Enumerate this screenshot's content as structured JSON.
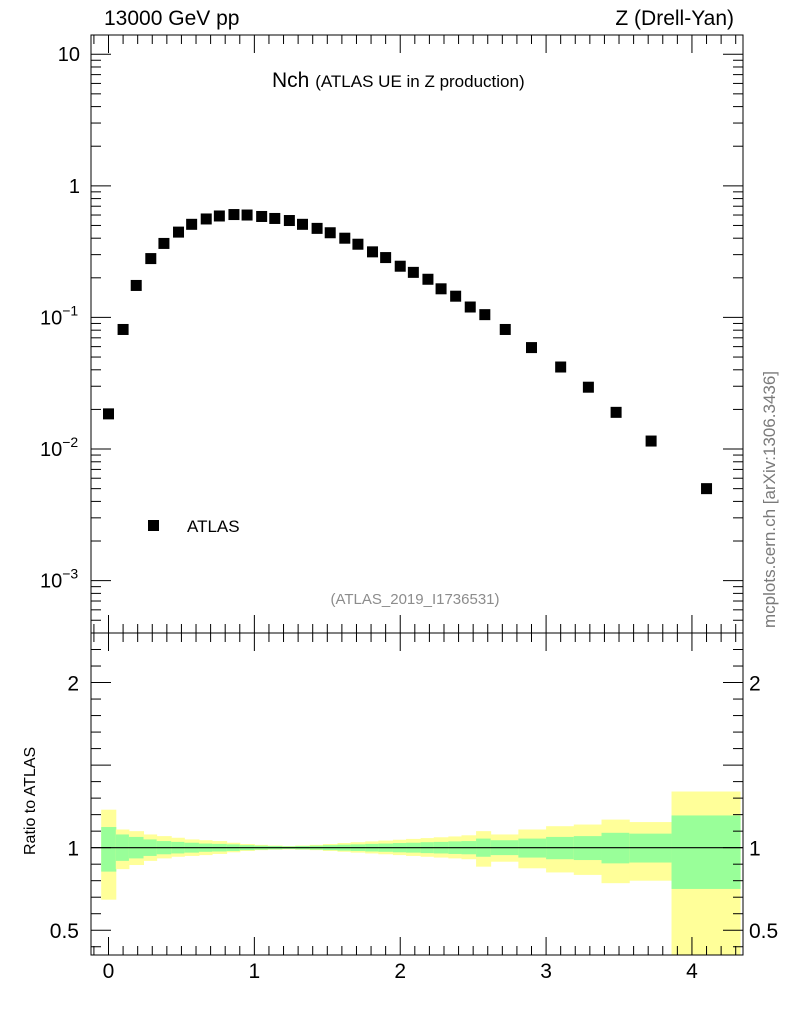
{
  "header": {
    "left": "13000 GeV pp",
    "right": "Z (Drell-Yan)",
    "side_label": "mcplots.cern.ch [arXiv:1306.3436]"
  },
  "chart_data": [
    {
      "type": "scatter",
      "title_main": "Nch",
      "title_sub": "(ATLAS UE in Z production)",
      "analysis_id": "(ATLAS_2019_I1736531)",
      "yscale": "log",
      "ylim": [
        0.0004,
        14
      ],
      "xlim": [
        -0.12,
        4.35
      ],
      "ytick_labels": [
        {
          "value": 10,
          "base": "10",
          "exp": ""
        },
        {
          "value": 1,
          "base": "1",
          "exp": ""
        },
        {
          "value": 0.1,
          "base": "10",
          "exp": "−1"
        },
        {
          "value": 0.01,
          "base": "10",
          "exp": "−2"
        },
        {
          "value": 0.001,
          "base": "10",
          "exp": "−3"
        }
      ],
      "legend": [
        {
          "label": "ATLAS",
          "marker": "square",
          "position": "lower-left"
        }
      ],
      "series": [
        {
          "name": "ATLAS",
          "color": "#000000",
          "points": [
            {
              "x": 0.0,
              "y": 0.0185
            },
            {
              "x": 0.1,
              "y": 0.081
            },
            {
              "x": 0.19,
              "y": 0.175
            },
            {
              "x": 0.29,
              "y": 0.28
            },
            {
              "x": 0.38,
              "y": 0.365
            },
            {
              "x": 0.48,
              "y": 0.445
            },
            {
              "x": 0.57,
              "y": 0.51
            },
            {
              "x": 0.67,
              "y": 0.56
            },
            {
              "x": 0.76,
              "y": 0.59
            },
            {
              "x": 0.86,
              "y": 0.605
            },
            {
              "x": 0.95,
              "y": 0.6
            },
            {
              "x": 1.05,
              "y": 0.585
            },
            {
              "x": 1.14,
              "y": 0.565
            },
            {
              "x": 1.24,
              "y": 0.545
            },
            {
              "x": 1.33,
              "y": 0.51
            },
            {
              "x": 1.43,
              "y": 0.475
            },
            {
              "x": 1.52,
              "y": 0.44
            },
            {
              "x": 1.62,
              "y": 0.4
            },
            {
              "x": 1.71,
              "y": 0.36
            },
            {
              "x": 1.81,
              "y": 0.315
            },
            {
              "x": 1.9,
              "y": 0.285
            },
            {
              "x": 2.0,
              "y": 0.245
            },
            {
              "x": 2.09,
              "y": 0.22
            },
            {
              "x": 2.19,
              "y": 0.195
            },
            {
              "x": 2.28,
              "y": 0.165
            },
            {
              "x": 2.38,
              "y": 0.145
            },
            {
              "x": 2.48,
              "y": 0.12
            },
            {
              "x": 2.58,
              "y": 0.105
            },
            {
              "x": 2.72,
              "y": 0.081
            },
            {
              "x": 2.9,
              "y": 0.059
            },
            {
              "x": 3.1,
              "y": 0.042
            },
            {
              "x": 3.29,
              "y": 0.0295
            },
            {
              "x": 3.48,
              "y": 0.019
            },
            {
              "x": 3.72,
              "y": 0.0115
            },
            {
              "x": 4.1,
              "y": 0.005
            }
          ]
        }
      ]
    },
    {
      "type": "area",
      "ylabel": "Ratio to ATLAS",
      "ylim": [
        0.35,
        2.3
      ],
      "xlim": [
        -0.12,
        4.35
      ],
      "reference_line": 1,
      "ytick_labels": [
        {
          "value": 2,
          "label": "2"
        },
        {
          "value": 1,
          "label": "1"
        },
        {
          "value": 0.5,
          "label": "0.5"
        }
      ],
      "xtick_labels": [
        {
          "value": 0,
          "label": "0"
        },
        {
          "value": 1,
          "label": "1"
        },
        {
          "value": 2,
          "label": "2"
        },
        {
          "value": 3,
          "label": "3"
        },
        {
          "value": 4,
          "label": "4"
        }
      ],
      "band_colors": {
        "stat": "#99ff99",
        "total": "#ffff99"
      },
      "bins": [
        {
          "x0": -0.05,
          "x1": 0.05,
          "stat": [
            0.855,
            1.125
          ],
          "total": [
            0.685,
            1.23
          ]
        },
        {
          "x0": 0.05,
          "x1": 0.14,
          "stat": [
            0.92,
            1.08
          ],
          "total": [
            0.87,
            1.11
          ]
        },
        {
          "x0": 0.14,
          "x1": 0.24,
          "stat": [
            0.935,
            1.065
          ],
          "total": [
            0.895,
            1.1
          ]
        },
        {
          "x0": 0.24,
          "x1": 0.33,
          "stat": [
            0.95,
            1.05
          ],
          "total": [
            0.92,
            1.08
          ]
        },
        {
          "x0": 0.33,
          "x1": 0.43,
          "stat": [
            0.96,
            1.04
          ],
          "total": [
            0.935,
            1.07
          ]
        },
        {
          "x0": 0.43,
          "x1": 0.52,
          "stat": [
            0.965,
            1.035
          ],
          "total": [
            0.945,
            1.06
          ]
        },
        {
          "x0": 0.52,
          "x1": 0.62,
          "stat": [
            0.97,
            1.03
          ],
          "total": [
            0.95,
            1.05
          ]
        },
        {
          "x0": 0.62,
          "x1": 0.71,
          "stat": [
            0.975,
            1.025
          ],
          "total": [
            0.955,
            1.045
          ]
        },
        {
          "x0": 0.71,
          "x1": 0.81,
          "stat": [
            0.977,
            1.023
          ],
          "total": [
            0.962,
            1.04
          ]
        },
        {
          "x0": 0.81,
          "x1": 0.9,
          "stat": [
            0.98,
            1.02
          ],
          "total": [
            0.972,
            1.03
          ]
        },
        {
          "x0": 0.9,
          "x1": 1.0,
          "stat": [
            0.985,
            1.015
          ],
          "total": [
            0.98,
            1.022
          ]
        },
        {
          "x0": 1.0,
          "x1": 1.09,
          "stat": [
            0.988,
            1.012
          ],
          "total": [
            0.985,
            1.017
          ]
        },
        {
          "x0": 1.09,
          "x1": 1.19,
          "stat": [
            0.99,
            1.01
          ],
          "total": [
            0.988,
            1.013
          ]
        },
        {
          "x0": 1.19,
          "x1": 1.28,
          "stat": [
            0.992,
            1.008
          ],
          "total": [
            0.99,
            1.01
          ]
        },
        {
          "x0": 1.28,
          "x1": 1.38,
          "stat": [
            0.99,
            1.01
          ],
          "total": [
            0.988,
            1.013
          ]
        },
        {
          "x0": 1.38,
          "x1": 1.47,
          "stat": [
            0.988,
            1.012
          ],
          "total": [
            0.985,
            1.017
          ]
        },
        {
          "x0": 1.47,
          "x1": 1.57,
          "stat": [
            0.985,
            1.015
          ],
          "total": [
            0.98,
            1.022
          ]
        },
        {
          "x0": 1.57,
          "x1": 1.66,
          "stat": [
            0.982,
            1.018
          ],
          "total": [
            0.975,
            1.028
          ]
        },
        {
          "x0": 1.66,
          "x1": 1.76,
          "stat": [
            0.98,
            1.02
          ],
          "total": [
            0.97,
            1.033
          ]
        },
        {
          "x0": 1.76,
          "x1": 1.85,
          "stat": [
            0.977,
            1.023
          ],
          "total": [
            0.965,
            1.038
          ]
        },
        {
          "x0": 1.85,
          "x1": 1.95,
          "stat": [
            0.975,
            1.025
          ],
          "total": [
            0.96,
            1.043
          ]
        },
        {
          "x0": 1.95,
          "x1": 2.04,
          "stat": [
            0.972,
            1.028
          ],
          "total": [
            0.955,
            1.048
          ]
        },
        {
          "x0": 2.04,
          "x1": 2.14,
          "stat": [
            0.97,
            1.03
          ],
          "total": [
            0.95,
            1.053
          ]
        },
        {
          "x0": 2.14,
          "x1": 2.23,
          "stat": [
            0.967,
            1.033
          ],
          "total": [
            0.945,
            1.058
          ]
        },
        {
          "x0": 2.23,
          "x1": 2.33,
          "stat": [
            0.965,
            1.035
          ],
          "total": [
            0.94,
            1.063
          ]
        },
        {
          "x0": 2.33,
          "x1": 2.42,
          "stat": [
            0.962,
            1.038
          ],
          "total": [
            0.935,
            1.068
          ]
        },
        {
          "x0": 2.42,
          "x1": 2.52,
          "stat": [
            0.96,
            1.04
          ],
          "total": [
            0.93,
            1.075
          ]
        },
        {
          "x0": 2.52,
          "x1": 2.62,
          "stat": [
            0.945,
            1.055
          ],
          "total": [
            0.885,
            1.1
          ]
        },
        {
          "x0": 2.62,
          "x1": 2.81,
          "stat": [
            0.955,
            1.045
          ],
          "total": [
            0.915,
            1.08
          ]
        },
        {
          "x0": 2.81,
          "x1": 3.0,
          "stat": [
            0.94,
            1.055
          ],
          "total": [
            0.875,
            1.11
          ]
        },
        {
          "x0": 3.0,
          "x1": 3.19,
          "stat": [
            0.93,
            1.065
          ],
          "total": [
            0.85,
            1.13
          ]
        },
        {
          "x0": 3.19,
          "x1": 3.38,
          "stat": [
            0.925,
            1.07
          ],
          "total": [
            0.835,
            1.14
          ]
        },
        {
          "x0": 3.38,
          "x1": 3.57,
          "stat": [
            0.905,
            1.09
          ],
          "total": [
            0.785,
            1.17
          ]
        },
        {
          "x0": 3.57,
          "x1": 3.86,
          "stat": [
            0.91,
            1.085
          ],
          "total": [
            0.8,
            1.155
          ]
        },
        {
          "x0": 3.86,
          "x1": 4.33,
          "stat": [
            0.75,
            1.195
          ],
          "total": [
            0.33,
            1.34
          ]
        }
      ]
    }
  ]
}
